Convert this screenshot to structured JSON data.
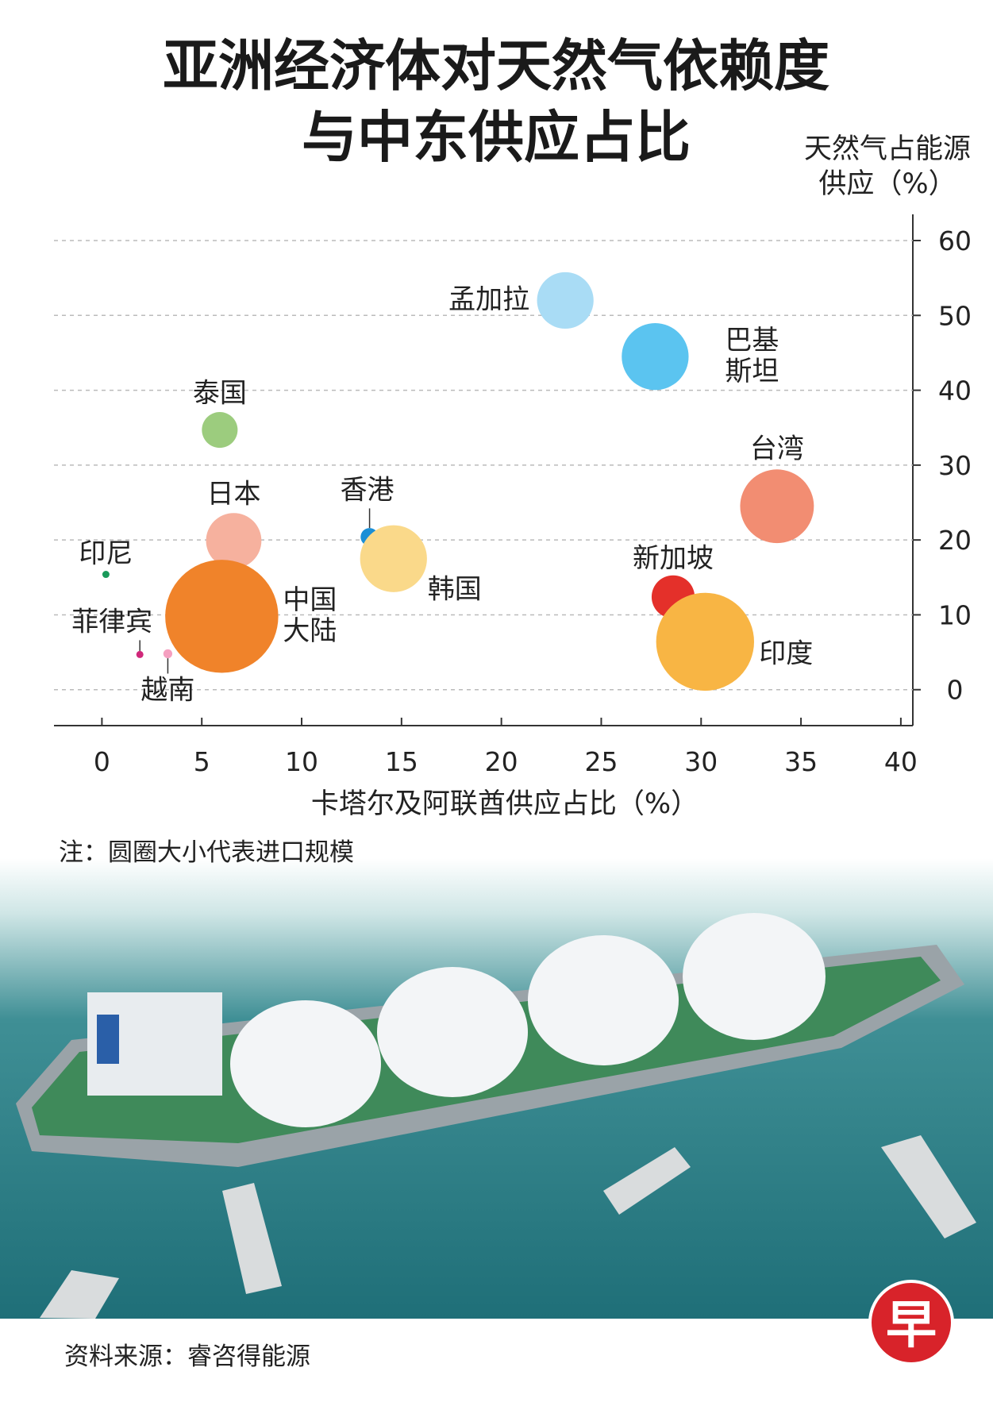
{
  "chart_data": {
    "type": "bubble",
    "title": "亚洲经济体对天然气依赖度与中东供应占比",
    "y_label": "天然气占能源供应（%）",
    "x_label": "卡塔尔及阿联酋供应占比（%）",
    "note": "注：圆圈大小代表进口规模",
    "source": "资料来源：睿咨得能源",
    "categories": [
      "孟加拉",
      "巴基斯坦",
      "泰国",
      "台湾",
      "日本",
      "香港",
      "韩国",
      "印尼",
      "中国大陆",
      "新加坡",
      "印度",
      "菲律宾",
      "越南"
    ],
    "x": [
      23.2,
      27.7,
      5.9,
      33.8,
      6.6,
      13.4,
      14.6,
      0.2,
      6.0,
      28.6,
      30.2,
      1.9,
      3.3
    ],
    "y": [
      52,
      44.5,
      34.7,
      24.5,
      19.9,
      20.4,
      17.5,
      15.4,
      9.8,
      12.4,
      6.4,
      4.7,
      4.8
    ],
    "sizes": [
      1000,
      1400,
      400,
      1700,
      960,
      100,
      1400,
      16,
      4000,
      580,
      3000,
      16,
      25
    ],
    "colors": [
      "#a9dcf5",
      "#5bc4f0",
      "#9ccc7e",
      "#f28d72",
      "#f6b19e",
      "#1b8fd6",
      "#fad98a",
      "#1a9a5a",
      "#f0832a",
      "#e4302a",
      "#f8b544",
      "#d0287a",
      "#f5a0c0"
    ],
    "xlim": [
      -2.4,
      40.6
    ],
    "ylim": [
      -4.8,
      63.5
    ],
    "xticks": [
      0,
      5,
      10,
      15,
      20,
      25,
      30,
      35,
      40
    ],
    "yticks": [
      0,
      10,
      20,
      30,
      40,
      50,
      60
    ],
    "grid": true
  },
  "logo": "早"
}
